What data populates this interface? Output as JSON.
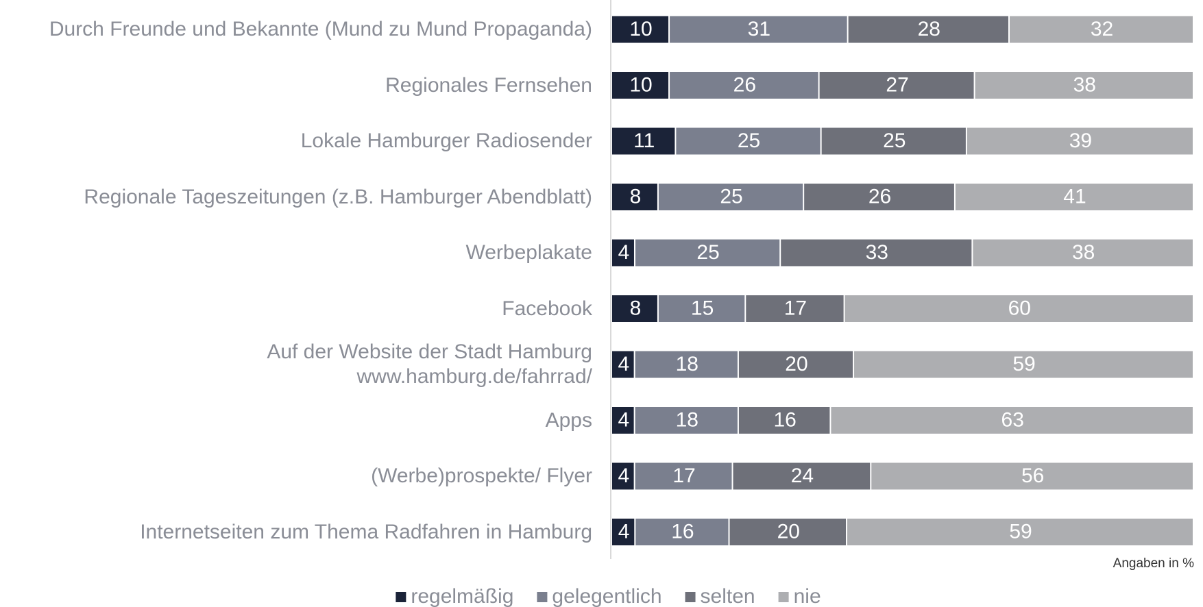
{
  "chart_data": {
    "type": "stacked_barh",
    "categories": [
      "Durch Freunde und Bekannte (Mund zu Mund Propaganda)",
      "Regionales Fernsehen",
      "Lokale Hamburger Radiosender",
      "Regionale Tageszeitungen (z.B. Hamburger Abendblatt)",
      "Werbeplakate",
      "Facebook",
      "Auf der Website der Stadt Hamburg\nwww.hamburg.de/fahrrad/",
      "Apps",
      "(Werbe)prospekte/ Flyer",
      "Internetseiten zum Thema Radfahren in Hamburg"
    ],
    "series": [
      {
        "name": "regelmäßig",
        "color": "#1b2338",
        "values": [
          10,
          10,
          11,
          8,
          4,
          8,
          4,
          4,
          4,
          4
        ]
      },
      {
        "name": "gelegentlich",
        "color": "#7a7f8e",
        "values": [
          31,
          26,
          25,
          25,
          25,
          15,
          18,
          18,
          17,
          16
        ]
      },
      {
        "name": "selten",
        "color": "#6e7079",
        "values": [
          28,
          27,
          25,
          26,
          33,
          17,
          20,
          16,
          24,
          20
        ]
      },
      {
        "name": "nie",
        "color": "#adaeb1",
        "values": [
          32,
          38,
          39,
          41,
          38,
          60,
          59,
          63,
          56,
          59
        ]
      }
    ],
    "annotation": "Angaben in %",
    "legend": "bottom"
  }
}
